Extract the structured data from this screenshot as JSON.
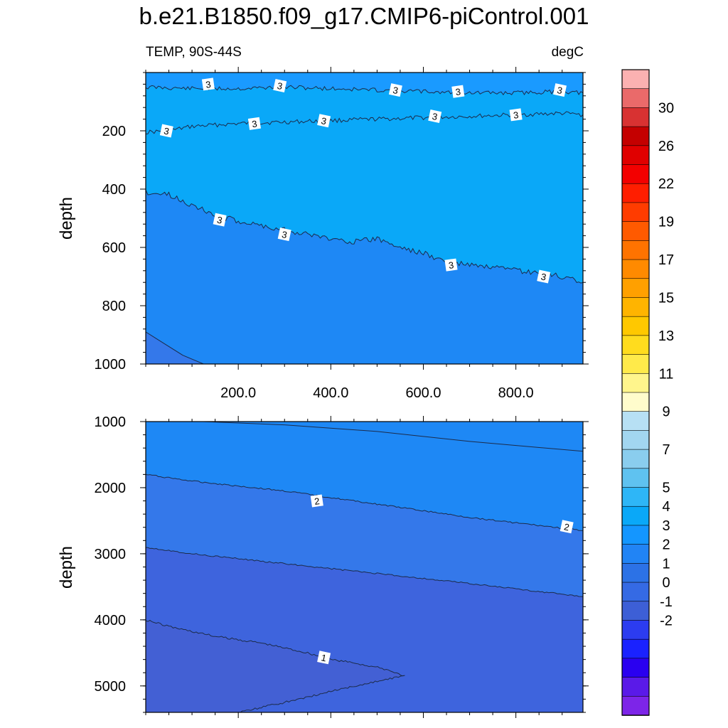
{
  "title": "b.e21.B1850.f09_g17.CMIP6-piControl.001",
  "left_label": "TEMP, 90S-44S",
  "right_label": "degC",
  "chart_data": [
    {
      "type": "heatmap",
      "panel": "upper",
      "ylabel": "depth",
      "ylim": [
        0,
        1000
      ],
      "y_reversed": true,
      "xlim": [
        0,
        945
      ],
      "x_tick_labels": [
        "200.0",
        "400.0",
        "600.0",
        "800.0"
      ],
      "x_ticks": [
        200,
        400,
        600,
        800
      ],
      "y_tick_labels": [
        "200",
        "400",
        "600",
        "800",
        "1000"
      ],
      "y_ticks": [
        200,
        400,
        600,
        800,
        1000
      ],
      "contours": [
        {
          "level": 3,
          "x": [
            0,
            100,
            200,
            300,
            400,
            500,
            600,
            700,
            800,
            900,
            945
          ],
          "y": [
            50,
            55,
            55,
            50,
            55,
            60,
            65,
            70,
            70,
            65,
            70
          ]
        },
        {
          "level": 3,
          "x": [
            0,
            50,
            100,
            200,
            300,
            400,
            500,
            600,
            700,
            800,
            900,
            945
          ],
          "y": [
            205,
            200,
            185,
            175,
            170,
            165,
            160,
            155,
            150,
            145,
            140,
            145
          ]
        },
        {
          "level": 3,
          "x": [
            0,
            50,
            80,
            150,
            200,
            300,
            400,
            450,
            500,
            550,
            600,
            650,
            700,
            800,
            900,
            945
          ],
          "y": [
            410,
            420,
            440,
            490,
            510,
            540,
            570,
            580,
            570,
            600,
            620,
            650,
            660,
            680,
            700,
            720
          ]
        },
        {
          "level": 2,
          "x": [
            0,
            40,
            80,
            125
          ],
          "y": [
            890,
            930,
            970,
            1000
          ]
        }
      ],
      "contour_labels": [
        {
          "text": "3",
          "x": 135,
          "y": 40
        },
        {
          "text": "3",
          "x": 290,
          "y": 45
        },
        {
          "text": "3",
          "x": 540,
          "y": 60
        },
        {
          "text": "3",
          "x": 675,
          "y": 65
        },
        {
          "text": "3",
          "x": 895,
          "y": 60
        },
        {
          "text": "3",
          "x": 45,
          "y": 200
        },
        {
          "text": "3",
          "x": 235,
          "y": 175
        },
        {
          "text": "3",
          "x": 385,
          "y": 165
        },
        {
          "text": "3",
          "x": 625,
          "y": 150
        },
        {
          "text": "3",
          "x": 800,
          "y": 145
        },
        {
          "text": "3",
          "x": 160,
          "y": 505
        },
        {
          "text": "3",
          "x": 300,
          "y": 555
        },
        {
          "text": "3",
          "x": 660,
          "y": 660
        },
        {
          "text": "3",
          "x": 860,
          "y": 700
        }
      ]
    },
    {
      "type": "heatmap",
      "panel": "lower",
      "ylabel": "depth",
      "ylim": [
        1000,
        5400
      ],
      "y_reversed": true,
      "xlim": [
        0,
        945
      ],
      "y_tick_labels": [
        "1000",
        "2000",
        "3000",
        "4000",
        "5000"
      ],
      "y_ticks": [
        1000,
        2000,
        3000,
        4000,
        5000
      ],
      "contours": [
        {
          "level": 2,
          "x": [
            125,
            300,
            500,
            700,
            945
          ],
          "y": [
            1000,
            1050,
            1150,
            1300,
            1450
          ]
        },
        {
          "level": 2,
          "x": [
            0,
            100,
            300,
            500,
            700,
            945
          ],
          "y": [
            1800,
            1900,
            2050,
            2250,
            2450,
            2650
          ]
        },
        {
          "level": 1,
          "x": [
            0,
            100,
            300,
            500,
            700,
            945
          ],
          "y": [
            2900,
            3000,
            3150,
            3300,
            3450,
            3650
          ]
        },
        {
          "level": 1,
          "x": [
            0,
            50,
            150,
            250,
            350,
            400,
            450,
            520,
            560,
            450,
            300,
            200
          ],
          "y": [
            4000,
            4100,
            4250,
            4350,
            4500,
            4600,
            4650,
            4750,
            4850,
            5000,
            5250,
            5400
          ]
        }
      ],
      "contour_labels": [
        {
          "text": "2",
          "x": 370,
          "y": 2200
        },
        {
          "text": "2",
          "x": 910,
          "y": 2590
        },
        {
          "text": "1",
          "x": 385,
          "y": 4570
        }
      ]
    }
  ],
  "colorbar": {
    "labels": [
      "30",
      "26",
      "22",
      "19",
      "17",
      "15",
      "13",
      "11",
      "9",
      "7",
      "5",
      "4",
      "3",
      "2",
      "1",
      "0",
      "-1",
      "-2"
    ],
    "colors": [
      "#fbb1b1",
      "#ea6a6a",
      "#d83232",
      "#c40000",
      "#e00000",
      "#f30000",
      "#ff1e00",
      "#ff3c00",
      "#ff5a00",
      "#ff7300",
      "#ff8a00",
      "#ffa000",
      "#ffb400",
      "#ffc800",
      "#ffdc1e",
      "#ffea4a",
      "#fff58c",
      "#fffccc",
      "#b7e0f4",
      "#a2d6f0",
      "#8acdee",
      "#5fc2f0",
      "#2eb6f7",
      "#0aa8f8",
      "#1496ff",
      "#2184f5",
      "#2c72e6",
      "#356ae4",
      "#3d5fd6",
      "#2c3cf0",
      "#1a22ff",
      "#2a00f0",
      "#5a1ae8",
      "#7d25e8"
    ]
  },
  "fill_colors": {
    "surface": "#1a9aff",
    "c3": "#0aa8f8",
    "c2_3": "#1e88f5",
    "c1_2": "#3478ea",
    "c0_1": "#3e64dd",
    "line": "#1c2b4a"
  }
}
